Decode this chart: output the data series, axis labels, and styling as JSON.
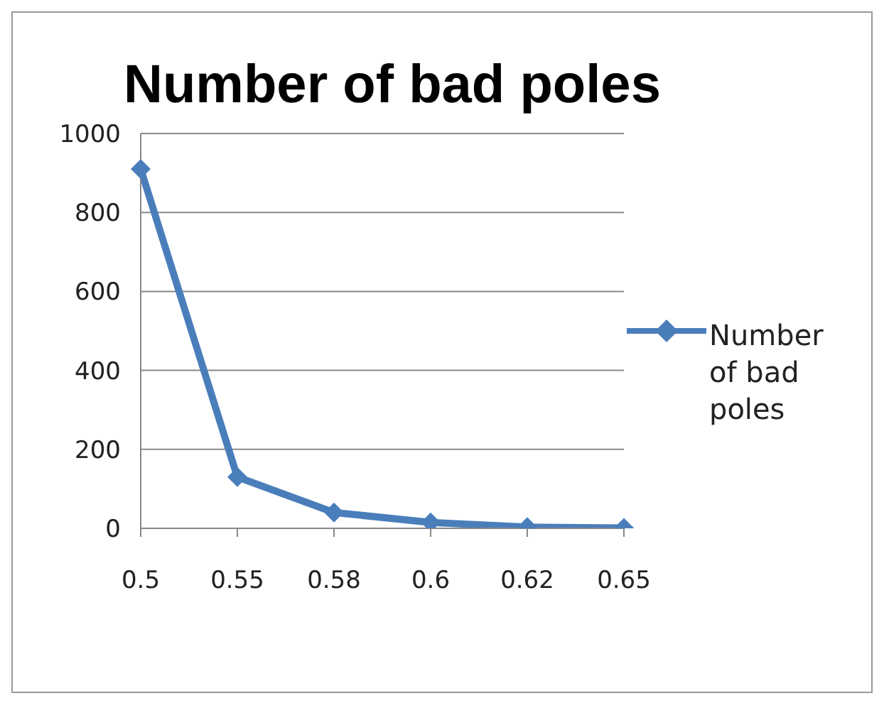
{
  "chart_data": {
    "type": "line",
    "title": "Number of bad poles",
    "categories": [
      "0.5",
      "0.55",
      "0.58",
      "0.6",
      "0.62",
      "0.65"
    ],
    "series": [
      {
        "name": "Number of bad poles",
        "color": "#4a7ebb",
        "values": [
          910,
          130,
          40,
          15,
          3,
          1
        ]
      }
    ],
    "ylim": [
      0,
      1000
    ],
    "yticks": [
      0,
      200,
      400,
      600,
      800,
      1000
    ],
    "grid": "y",
    "legend": "right",
    "marker": "diamond",
    "line_style": "solid"
  }
}
